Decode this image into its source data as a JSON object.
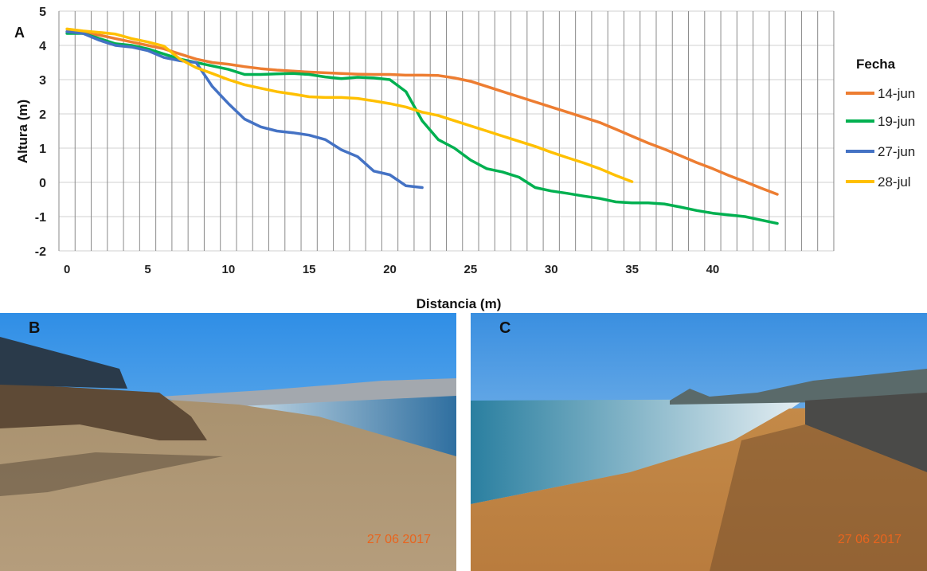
{
  "panel_labels": {
    "a": "A",
    "b": "B",
    "c": "C"
  },
  "photos": {
    "b": {
      "date_stamp": "27 06 2017"
    },
    "c": {
      "date_stamp": "27 06 2017"
    }
  },
  "chart_data": {
    "type": "line",
    "xlabel": "Distancia (m)",
    "ylabel": "Altura (m)",
    "ylim": [
      -2,
      5
    ],
    "yticks": [
      "-2",
      "-1",
      "0",
      "1",
      "2",
      "3",
      "4",
      "5"
    ],
    "xticks": [
      "0",
      "5",
      "10",
      "15",
      "20",
      "25",
      "30",
      "35",
      "40"
    ],
    "grid": "on",
    "legend_title": "Fecha",
    "legend_position": "right",
    "series": [
      {
        "name": "14-jun",
        "color": "#ED7D31",
        "x_start": 0,
        "values": [
          4.4,
          4.35,
          4.3,
          4.2,
          4.1,
          4.0,
          3.9,
          3.75,
          3.6,
          3.5,
          3.45,
          3.38,
          3.32,
          3.28,
          3.25,
          3.22,
          3.2,
          3.18,
          3.16,
          3.15,
          3.15,
          3.13,
          3.13,
          3.12,
          3.05,
          2.95,
          2.8,
          2.65,
          2.5,
          2.35,
          2.2,
          2.05,
          1.9,
          1.75,
          1.55,
          1.35,
          1.15,
          0.97,
          0.78,
          0.58,
          0.4,
          0.2,
          0.02,
          -0.17,
          -0.35
        ]
      },
      {
        "name": "19-jun",
        "color": "#00B050",
        "x_start": 0,
        "values": [
          4.35,
          4.35,
          4.2,
          4.05,
          4.0,
          3.9,
          3.75,
          3.6,
          3.5,
          3.4,
          3.3,
          3.15,
          3.15,
          3.17,
          3.18,
          3.15,
          3.08,
          3.03,
          3.07,
          3.05,
          3.0,
          2.65,
          1.8,
          1.25,
          1.0,
          0.65,
          0.4,
          0.3,
          0.15,
          -0.15,
          -0.25,
          -0.32,
          -0.4,
          -0.47,
          -0.57,
          -0.6,
          -0.6,
          -0.63,
          -0.72,
          -0.82,
          -0.9,
          -0.95,
          -1.0,
          -1.1,
          -1.2
        ]
      },
      {
        "name": "27-jun",
        "color": "#4472C4",
        "x_start": 0,
        "values": [
          4.4,
          4.35,
          4.15,
          4.0,
          3.95,
          3.85,
          3.65,
          3.55,
          3.5,
          2.8,
          2.3,
          1.85,
          1.62,
          1.5,
          1.45,
          1.38,
          1.25,
          0.95,
          0.75,
          0.33,
          0.22,
          -0.1,
          -0.15
        ]
      },
      {
        "name": "28-jul",
        "color": "#FFC000",
        "x_start": 0,
        "values": [
          4.48,
          4.42,
          4.38,
          4.33,
          4.2,
          4.1,
          3.98,
          3.6,
          3.35,
          3.18,
          3.0,
          2.85,
          2.75,
          2.65,
          2.58,
          2.5,
          2.48,
          2.48,
          2.45,
          2.38,
          2.3,
          2.2,
          2.05,
          1.95,
          1.8,
          1.65,
          1.5,
          1.35,
          1.2,
          1.05,
          0.88,
          0.72,
          0.57,
          0.4,
          0.2,
          0.02
        ]
      }
    ]
  }
}
